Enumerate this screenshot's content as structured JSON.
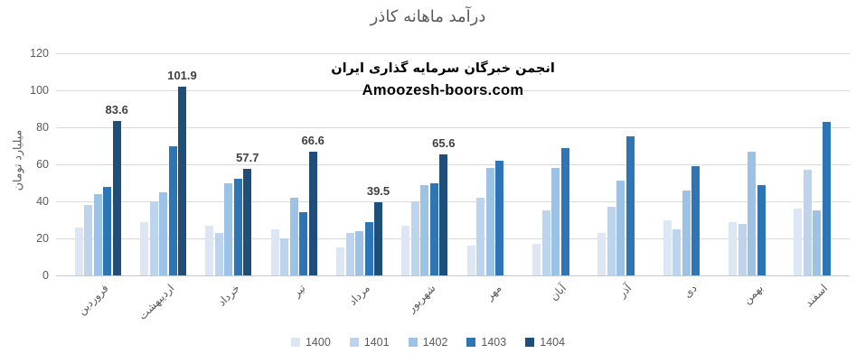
{
  "chart_data": {
    "type": "bar",
    "title": "درآمد ماهانه کاذر",
    "ylabel": "میلیارد تومان",
    "xlabel": "",
    "ylim": [
      0,
      120
    ],
    "yticks": [
      0,
      20,
      40,
      60,
      80,
      100,
      120
    ],
    "grid": true,
    "legend_position": "bottom",
    "categories": [
      "فروردین",
      "اردیبهشت",
      "خرداد",
      "تیر",
      "مرداد",
      "شهریور",
      "مهر",
      "آبان",
      "آذر",
      "دی",
      "بهمن",
      "اسفند"
    ],
    "series": [
      {
        "name": "1400",
        "color": "#dde7f3",
        "values": [
          26,
          29,
          27,
          25,
          15,
          27,
          16,
          17,
          23,
          30,
          29,
          36
        ]
      },
      {
        "name": "1401",
        "color": "#bdd4ec",
        "values": [
          38,
          40,
          23,
          20,
          23,
          40,
          42,
          35,
          37,
          25,
          28,
          57
        ]
      },
      {
        "name": "1402",
        "color": "#9cc3e5",
        "values": [
          44,
          45,
          50,
          42,
          24,
          49,
          58,
          58,
          51,
          46,
          67,
          35
        ]
      },
      {
        "name": "1403",
        "color": "#2e75b6",
        "values": [
          48,
          70,
          52,
          34,
          29,
          50,
          62,
          69,
          75,
          59,
          49,
          83
        ]
      },
      {
        "name": "1404",
        "color": "#1f4e79",
        "values": [
          83.6,
          101.9,
          57.7,
          66.6,
          39.5,
          65.6,
          null,
          null,
          null,
          null,
          null,
          null
        ],
        "data_labels": true
      }
    ],
    "annotations": {
      "watermark_line1": "انجمن خبرگان سرمایه گذاری ایران",
      "watermark_line2": "Amoozesh-boors.com"
    }
  },
  "colors": {
    "text": "#595959",
    "gridline": "#d9d9d9",
    "data_label": "#404040",
    "watermark": "#000000",
    "background": "#ffffff"
  }
}
